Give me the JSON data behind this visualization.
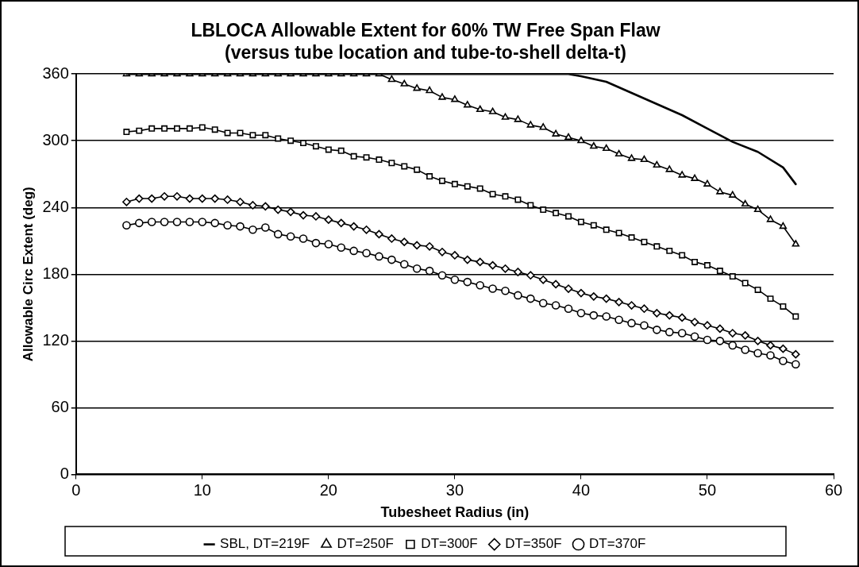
{
  "chart_data": {
    "type": "line",
    "title": "LBLOCA Allowable Extent for 60% TW Free Span Flaw",
    "subtitle": "(versus tube location and tube-to-shell delta-t)",
    "xlabel": "Tubesheet Radius (in)",
    "ylabel": "Allowable Circ Extent (deg)",
    "x": [
      4,
      5,
      6,
      7,
      8,
      9,
      10,
      11,
      12,
      13,
      14,
      15,
      16,
      17,
      18,
      19,
      20,
      21,
      22,
      23,
      24,
      25,
      26,
      27,
      28,
      29,
      30,
      31,
      32,
      33,
      34,
      35,
      36,
      37,
      38,
      39,
      40,
      41,
      42,
      43,
      44,
      45,
      46,
      47,
      48,
      49,
      50,
      51,
      52,
      53,
      54,
      55,
      56,
      57
    ],
    "xlim": [
      0,
      60
    ],
    "xticks": [
      0,
      10,
      20,
      30,
      40,
      50,
      60
    ],
    "ylim": [
      0,
      360
    ],
    "yticks": [
      0,
      60,
      120,
      180,
      240,
      300,
      360
    ],
    "grid": "y",
    "legend": "bottom",
    "line_style": "solid",
    "series": [
      {
        "name": "SBL, DT=219F",
        "color": "#000000",
        "marker": "none",
        "x": [
          4,
          39,
          40,
          42,
          44,
          46,
          48,
          50,
          52,
          54,
          56,
          57
        ],
        "values": [
          360,
          360,
          358,
          353,
          343,
          333,
          323,
          311,
          299,
          290,
          276,
          261
        ]
      },
      {
        "name": "DT=250F",
        "color": "#000000",
        "marker": "triangle",
        "values": [
          360,
          360,
          360,
          360,
          360,
          360,
          360,
          360,
          360,
          360,
          360,
          360,
          360,
          360,
          360,
          360,
          360,
          360,
          360,
          360,
          360,
          355,
          351,
          347,
          345,
          339,
          337,
          332,
          328,
          326,
          321,
          319,
          314,
          312,
          306,
          303,
          300,
          295,
          293,
          288,
          284,
          283,
          278,
          274,
          269,
          266,
          261,
          254,
          251,
          243,
          238,
          229,
          223,
          207
        ]
      },
      {
        "name": "DT=300F",
        "color": "#000000",
        "marker": "square",
        "values": [
          308,
          309,
          311,
          311,
          311,
          311,
          312,
          310,
          307,
          307,
          305,
          305,
          302,
          300,
          298,
          295,
          292,
          291,
          286,
          285,
          283,
          280,
          277,
          274,
          268,
          264,
          261,
          259,
          257,
          252,
          250,
          247,
          242,
          238,
          235,
          232,
          227,
          224,
          220,
          217,
          213,
          209,
          205,
          201,
          197,
          191,
          188,
          183,
          178,
          172,
          166,
          158,
          151,
          142
        ]
      },
      {
        "name": "DT=350F",
        "color": "#000000",
        "marker": "diamond",
        "values": [
          245,
          248,
          248,
          250,
          250,
          248,
          248,
          248,
          247,
          245,
          242,
          241,
          238,
          236,
          233,
          232,
          229,
          226,
          223,
          220,
          216,
          212,
          209,
          206,
          205,
          200,
          197,
          193,
          191,
          188,
          185,
          182,
          179,
          175,
          171,
          167,
          163,
          160,
          158,
          155,
          152,
          149,
          145,
          143,
          141,
          137,
          134,
          131,
          127,
          125,
          120,
          116,
          113,
          108
        ]
      },
      {
        "name": "DT=370F",
        "color": "#000000",
        "marker": "circle",
        "values": [
          224,
          226,
          227,
          227,
          227,
          227,
          227,
          226,
          224,
          223,
          220,
          222,
          216,
          214,
          212,
          208,
          207,
          204,
          201,
          199,
          196,
          193,
          189,
          185,
          183,
          179,
          175,
          173,
          170,
          167,
          165,
          161,
          158,
          154,
          152,
          149,
          145,
          143,
          142,
          139,
          136,
          134,
          130,
          128,
          127,
          124,
          121,
          120,
          116,
          112,
          109,
          107,
          102,
          99
        ]
      }
    ]
  }
}
